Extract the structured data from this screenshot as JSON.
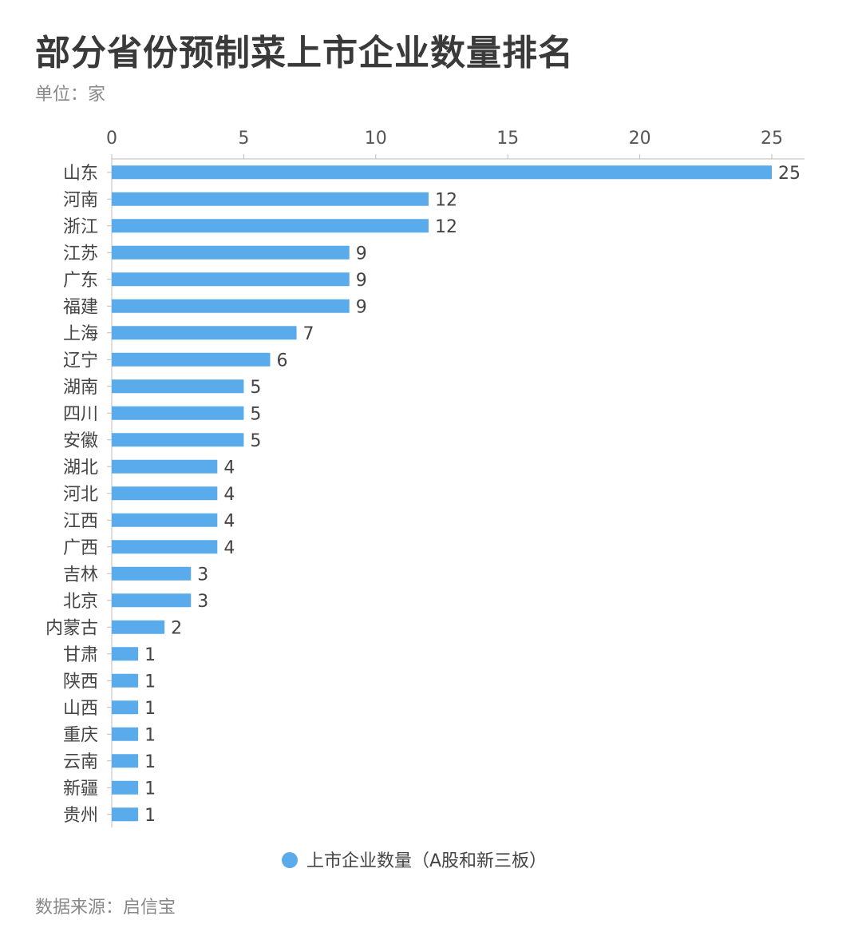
{
  "title": "部分省份预制菜上市企业数量排名",
  "unit": "单位：家",
  "source": "数据来源：启信宝",
  "accent_color": "#5aabeb",
  "chart_data": {
    "type": "bar",
    "orientation": "horizontal",
    "title": "部分省份预制菜上市企业数量排名",
    "xlim": [
      0,
      25
    ],
    "xticks": [
      0,
      5,
      10,
      15,
      20,
      25
    ],
    "x_axis_position": "top",
    "grid": false,
    "legend_position": "bottom",
    "categories": [
      "山东",
      "河南",
      "浙江",
      "江苏",
      "广东",
      "福建",
      "上海",
      "辽宁",
      "湖南",
      "四川",
      "安徽",
      "湖北",
      "河北",
      "江西",
      "广西",
      "吉林",
      "北京",
      "内蒙古",
      "甘肃",
      "陕西",
      "山西",
      "重庆",
      "云南",
      "新疆",
      "贵州"
    ],
    "series": [
      {
        "name": "上市企业数量（A股和新三板）",
        "color": "#5aabeb",
        "values": [
          25,
          12,
          12,
          9,
          9,
          9,
          7,
          6,
          5,
          5,
          5,
          4,
          4,
          4,
          4,
          3,
          3,
          2,
          1,
          1,
          1,
          1,
          1,
          1,
          1
        ]
      }
    ]
  }
}
